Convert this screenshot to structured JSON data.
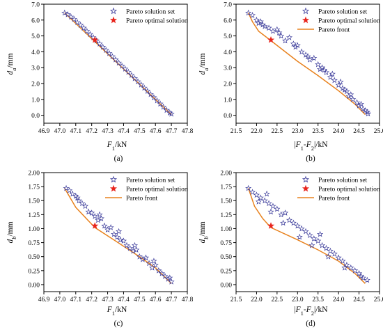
{
  "colors": {
    "solution_set": "#3b3b9a",
    "optimal": "#e8251d",
    "front": "#e8821e",
    "axis": "#000000"
  },
  "chart_data": [
    {
      "type": "scatter",
      "panel": "(a)",
      "xlabel_main": "F",
      "xlabel_sub": "1",
      "xlabel_tail": "/kN",
      "ylabel_main": "d",
      "ylabel_sub": "a",
      "ylabel_tail": "/mm",
      "xlim": [
        46.9,
        47.8
      ],
      "ylim": [
        -0.5,
        7.0
      ],
      "xticks": [
        "46.9",
        "47.0",
        "47.1",
        "47.2",
        "47.3",
        "47.4",
        "47.5",
        "47.6",
        "47.7",
        "47.8"
      ],
      "yticks": [
        "0.0",
        "1.0",
        "2.0",
        "3.0",
        "4.0",
        "5.0",
        "6.0",
        "7.0"
      ],
      "legend": [
        "Pareto solution set",
        "Pareto optimal solution"
      ],
      "series": [
        {
          "name": "Pareto solution set",
          "style": "star-outline",
          "points": [
            [
              47.03,
              6.45
            ],
            [
              47.05,
              6.35
            ],
            [
              47.07,
              6.2
            ],
            [
              47.09,
              6.05
            ],
            [
              47.11,
              5.85
            ],
            [
              47.13,
              5.68
            ],
            [
              47.15,
              5.5
            ],
            [
              47.17,
              5.3
            ],
            [
              47.19,
              5.1
            ],
            [
              47.21,
              4.9
            ],
            [
              47.23,
              4.7
            ],
            [
              47.25,
              4.5
            ],
            [
              47.27,
              4.3
            ],
            [
              47.29,
              4.1
            ],
            [
              47.31,
              3.9
            ],
            [
              47.33,
              3.7
            ],
            [
              47.35,
              3.5
            ],
            [
              47.37,
              3.3
            ],
            [
              47.39,
              3.1
            ],
            [
              47.41,
              2.92
            ],
            [
              47.43,
              2.72
            ],
            [
              47.45,
              2.52
            ],
            [
              47.47,
              2.32
            ],
            [
              47.49,
              2.12
            ],
            [
              47.51,
              1.92
            ],
            [
              47.53,
              1.72
            ],
            [
              47.55,
              1.52
            ],
            [
              47.57,
              1.32
            ],
            [
              47.59,
              1.12
            ],
            [
              47.61,
              0.92
            ],
            [
              47.63,
              0.72
            ],
            [
              47.65,
              0.52
            ],
            [
              47.67,
              0.32
            ],
            [
              47.69,
              0.15
            ],
            [
              47.7,
              0.08
            ]
          ]
        },
        {
          "name": "Pareto optimal solution",
          "style": "star-filled",
          "points": [
            [
              47.22,
              4.75
            ]
          ]
        }
      ],
      "front": [
        [
          47.03,
          6.45
        ],
        [
          47.7,
          0.05
        ]
      ]
    },
    {
      "type": "scatter",
      "panel": "(b)",
      "xlabel_main": "|F",
      "xlabel_sub": "1",
      "xlabel_mid": "-F",
      "xlabel_sub2": "2",
      "xlabel_tail": "|/kN",
      "ylabel_main": "d",
      "ylabel_sub": "a",
      "ylabel_tail": "/mm",
      "xlim": [
        21.5,
        25.0
      ],
      "ylim": [
        -0.5,
        7.0
      ],
      "xticks": [
        "21.5",
        "22.0",
        "22.5",
        "23.0",
        "23.5",
        "24.0",
        "24.5",
        "25.0"
      ],
      "yticks": [
        "0.0",
        "1.0",
        "2.0",
        "3.0",
        "4.0",
        "5.0",
        "6.0",
        "7.0"
      ],
      "legend": [
        "Pareto solution set",
        "Pareto optimal solution",
        "Pareto front"
      ],
      "series": [
        {
          "name": "Pareto solution set",
          "style": "star-outline",
          "points": [
            [
              21.8,
              6.45
            ],
            [
              21.9,
              6.3
            ],
            [
              22.0,
              6.0
            ],
            [
              22.05,
              5.8
            ],
            [
              22.1,
              5.9
            ],
            [
              22.2,
              5.6
            ],
            [
              22.3,
              5.5
            ],
            [
              22.4,
              5.3
            ],
            [
              22.5,
              5.4
            ],
            [
              22.6,
              5.0
            ],
            [
              22.7,
              4.7
            ],
            [
              22.8,
              4.9
            ],
            [
              22.9,
              4.5
            ],
            [
              22.95,
              4.3
            ],
            [
              23.0,
              4.4
            ],
            [
              23.1,
              4.0
            ],
            [
              23.2,
              3.8
            ],
            [
              23.3,
              3.5
            ],
            [
              23.4,
              3.6
            ],
            [
              23.5,
              3.2
            ],
            [
              23.55,
              2.9
            ],
            [
              23.6,
              3.0
            ],
            [
              23.7,
              2.7
            ],
            [
              23.8,
              2.4
            ],
            [
              23.85,
              2.6
            ],
            [
              23.9,
              2.2
            ],
            [
              24.0,
              1.9
            ],
            [
              24.05,
              2.1
            ],
            [
              24.1,
              1.7
            ],
            [
              24.2,
              1.5
            ],
            [
              24.25,
              1.2
            ],
            [
              24.3,
              1.3
            ],
            [
              24.35,
              1.0
            ],
            [
              24.45,
              0.8
            ],
            [
              24.5,
              0.6
            ],
            [
              24.55,
              0.7
            ],
            [
              24.6,
              0.4
            ],
            [
              24.65,
              0.3
            ],
            [
              24.7,
              0.2
            ],
            [
              24.72,
              0.1
            ],
            [
              22.15,
              5.7
            ],
            [
              22.55,
              5.2
            ],
            [
              23.25,
              3.7
            ],
            [
              23.65,
              2.85
            ],
            [
              24.15,
              1.6
            ]
          ]
        },
        {
          "name": "Pareto optimal solution",
          "style": "star-filled",
          "points": [
            [
              22.35,
              4.75
            ]
          ]
        }
      ],
      "front": [
        [
          21.8,
          6.45
        ],
        [
          21.9,
          5.9
        ],
        [
          22.05,
          5.3
        ],
        [
          22.35,
          4.7
        ],
        [
          23.0,
          3.4
        ],
        [
          23.5,
          2.5
        ],
        [
          24.0,
          1.55
        ],
        [
          24.4,
          0.7
        ],
        [
          24.65,
          0.05
        ]
      ]
    },
    {
      "type": "scatter",
      "panel": "(c)",
      "xlabel_main": "F",
      "xlabel_sub": "1",
      "xlabel_tail": "/kN",
      "ylabel_main": "d",
      "ylabel_sub": "b",
      "ylabel_tail": "/mm",
      "xlim": [
        46.9,
        47.8
      ],
      "ylim": [
        -0.125,
        2.0
      ],
      "xticks": [
        "46.9",
        "47.0",
        "47.1",
        "47.2",
        "47.3",
        "47.4",
        "47.5",
        "47.6",
        "47.7",
        "47.8"
      ],
      "yticks": [
        "0.00",
        "0.25",
        "0.50",
        "0.75",
        "1.00",
        "1.25",
        "1.50",
        "1.75",
        "2.00"
      ],
      "legend": [
        "Pareto solution set",
        "Pareto optimal solution",
        "Pareto front"
      ],
      "series": [
        {
          "name": "Pareto solution set",
          "style": "star-outline",
          "points": [
            [
              47.04,
              1.72
            ],
            [
              47.06,
              1.68
            ],
            [
              47.08,
              1.62
            ],
            [
              47.1,
              1.58
            ],
            [
              47.12,
              1.5
            ],
            [
              47.14,
              1.45
            ],
            [
              47.16,
              1.4
            ],
            [
              47.18,
              1.3
            ],
            [
              47.2,
              1.28
            ],
            [
              47.22,
              1.22
            ],
            [
              47.24,
              1.15
            ],
            [
              47.26,
              1.18
            ],
            [
              47.28,
              1.05
            ],
            [
              47.3,
              0.98
            ],
            [
              47.32,
              1.02
            ],
            [
              47.34,
              0.9
            ],
            [
              47.36,
              0.85
            ],
            [
              47.38,
              0.8
            ],
            [
              47.4,
              0.78
            ],
            [
              47.42,
              0.7
            ],
            [
              47.44,
              0.65
            ],
            [
              47.46,
              0.6
            ],
            [
              47.48,
              0.62
            ],
            [
              47.5,
              0.5
            ],
            [
              47.52,
              0.45
            ],
            [
              47.54,
              0.48
            ],
            [
              47.56,
              0.38
            ],
            [
              47.58,
              0.3
            ],
            [
              47.6,
              0.35
            ],
            [
              47.62,
              0.25
            ],
            [
              47.64,
              0.2
            ],
            [
              47.66,
              0.15
            ],
            [
              47.68,
              0.1
            ],
            [
              47.7,
              0.05
            ],
            [
              47.11,
              1.55
            ],
            [
              47.25,
              1.25
            ],
            [
              47.37,
              0.95
            ],
            [
              47.47,
              0.7
            ],
            [
              47.59,
              0.42
            ],
            [
              47.69,
              0.12
            ]
          ]
        },
        {
          "name": "Pareto optimal solution",
          "style": "star-filled",
          "points": [
            [
              47.22,
              1.05
            ]
          ]
        }
      ],
      "front": [
        [
          47.03,
          1.72
        ],
        [
          47.1,
          1.38
        ],
        [
          47.22,
          1.02
        ],
        [
          47.35,
          0.78
        ],
        [
          47.5,
          0.5
        ],
        [
          47.6,
          0.3
        ],
        [
          47.7,
          0.02
        ]
      ]
    },
    {
      "type": "scatter",
      "panel": "(d)",
      "xlabel_main": "|F",
      "xlabel_sub": "1",
      "xlabel_mid": "-F",
      "xlabel_sub2": "2",
      "xlabel_tail": "|/kN",
      "ylabel_main": "d",
      "ylabel_sub": "b",
      "ylabel_tail": "/mm",
      "xlim": [
        21.5,
        25.0
      ],
      "ylim": [
        -0.125,
        2.0
      ],
      "xticks": [
        "21.5",
        "22.0",
        "22.5",
        "23.0",
        "23.5",
        "24.0",
        "24.5",
        "25.0"
      ],
      "yticks": [
        "0.00",
        "0.25",
        "0.50",
        "0.75",
        "1.00",
        "1.25",
        "1.50",
        "1.75",
        "2.00"
      ],
      "legend": [
        "Pareto solution set",
        "Pareto optimal solution",
        "Pareto front"
      ],
      "series": [
        {
          "name": "Pareto solution set",
          "style": "star-outline",
          "points": [
            [
              21.8,
              1.72
            ],
            [
              21.9,
              1.65
            ],
            [
              22.0,
              1.6
            ],
            [
              22.1,
              1.55
            ],
            [
              22.2,
              1.5
            ],
            [
              22.3,
              1.45
            ],
            [
              22.4,
              1.4
            ],
            [
              22.5,
              1.35
            ],
            [
              22.6,
              1.25
            ],
            [
              22.7,
              1.28
            ],
            [
              22.8,
              1.15
            ],
            [
              22.9,
              1.1
            ],
            [
              23.0,
              1.05
            ],
            [
              23.1,
              1.0
            ],
            [
              23.2,
              0.95
            ],
            [
              23.3,
              0.88
            ],
            [
              23.4,
              0.82
            ],
            [
              23.5,
              0.78
            ],
            [
              23.6,
              0.7
            ],
            [
              23.7,
              0.65
            ],
            [
              23.8,
              0.6
            ],
            [
              23.9,
              0.55
            ],
            [
              24.0,
              0.48
            ],
            [
              24.1,
              0.42
            ],
            [
              24.2,
              0.35
            ],
            [
              24.3,
              0.3
            ],
            [
              24.4,
              0.25
            ],
            [
              24.5,
              0.2
            ],
            [
              24.6,
              0.12
            ],
            [
              24.7,
              0.08
            ],
            [
              22.05,
              1.48
            ],
            [
              22.35,
              1.3
            ],
            [
              22.65,
              1.1
            ],
            [
              23.05,
              0.85
            ],
            [
              23.35,
              0.7
            ],
            [
              23.75,
              0.5
            ],
            [
              24.15,
              0.3
            ],
            [
              24.55,
              0.15
            ],
            [
              22.25,
              1.62
            ],
            [
              23.55,
              0.9
            ]
          ]
        },
        {
          "name": "Pareto optimal solution",
          "style": "star-filled",
          "points": [
            [
              22.35,
              1.05
            ]
          ]
        }
      ],
      "front": [
        [
          21.8,
          1.72
        ],
        [
          21.95,
          1.4
        ],
        [
          22.15,
          1.18
        ],
        [
          22.35,
          1.02
        ],
        [
          23.0,
          0.8
        ],
        [
          23.5,
          0.62
        ],
        [
          24.0,
          0.42
        ],
        [
          24.4,
          0.2
        ],
        [
          24.65,
          0.02
        ]
      ]
    }
  ]
}
